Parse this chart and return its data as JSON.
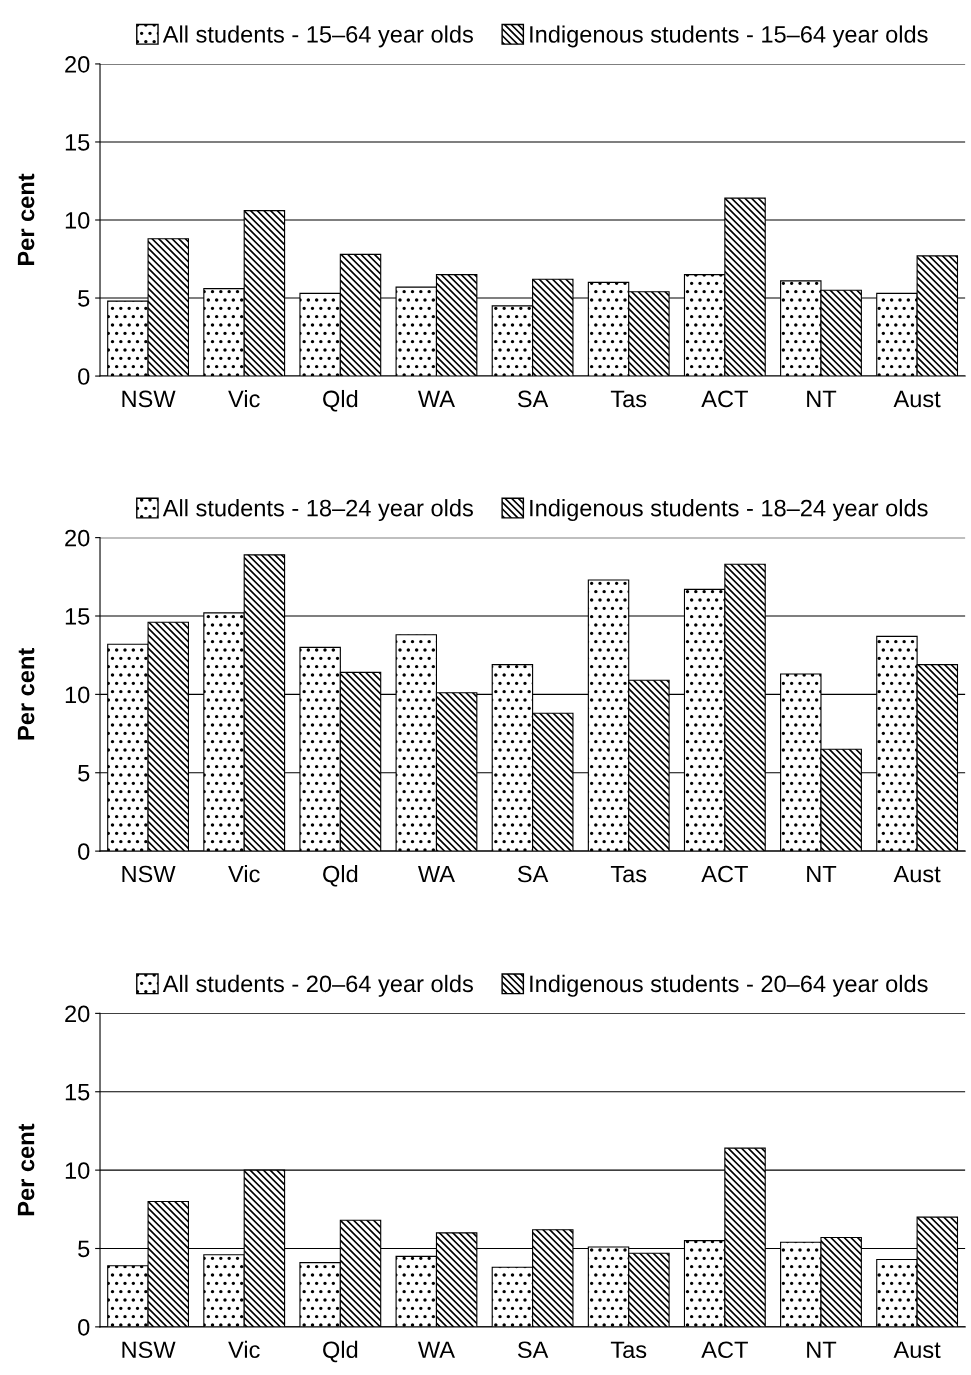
{
  "chart_data": [
    {
      "type": "bar",
      "ylabel": "Per cent",
      "categories": [
        "NSW",
        "Vic",
        "Qld",
        "WA",
        "SA",
        "Tas",
        "ACT",
        "NT",
        "Aust"
      ],
      "ylim": [
        0,
        20
      ],
      "yticks": [
        0,
        5,
        10,
        15,
        20
      ],
      "grid": "y",
      "legend": "top",
      "series": [
        {
          "name": "All students - 15–64 year olds",
          "color": "#000000",
          "values": [
            4.8,
            5.6,
            5.3,
            5.7,
            4.5,
            6.0,
            6.5,
            6.1,
            5.3
          ]
        },
        {
          "name": "Indigenous students - 15–64 year olds",
          "color": "#000000",
          "values": [
            8.8,
            10.6,
            7.8,
            6.5,
            6.2,
            5.4,
            11.4,
            5.5,
            7.7
          ]
        }
      ]
    },
    {
      "type": "bar",
      "ylabel": "Per cent",
      "categories": [
        "NSW",
        "Vic",
        "Qld",
        "WA",
        "SA",
        "Tas",
        "ACT",
        "NT",
        "Aust"
      ],
      "ylim": [
        0,
        20
      ],
      "yticks": [
        0,
        5,
        10,
        15,
        20
      ],
      "grid": "y",
      "legend": "top",
      "series": [
        {
          "name": "All students - 18–24 year olds",
          "color": "#000000",
          "values": [
            13.2,
            15.2,
            13.0,
            13.8,
            11.9,
            17.3,
            16.7,
            11.3,
            13.7
          ]
        },
        {
          "name": "Indigenous students - 18–24 year olds",
          "color": "#000000",
          "values": [
            14.6,
            18.9,
            11.4,
            10.1,
            8.8,
            10.9,
            18.3,
            6.5,
            11.9
          ]
        }
      ]
    },
    {
      "type": "bar",
      "ylabel": "Per cent",
      "categories": [
        "NSW",
        "Vic",
        "Qld",
        "WA",
        "SA",
        "Tas",
        "ACT",
        "NT",
        "Aust"
      ],
      "ylim": [
        0,
        20
      ],
      "yticks": [
        0,
        5,
        10,
        15,
        20
      ],
      "grid": "y",
      "legend": "top",
      "series": [
        {
          "name": "All students - 20–64 year olds",
          "color": "#000000",
          "values": [
            3.9,
            4.6,
            4.1,
            4.5,
            3.8,
            5.1,
            5.5,
            5.4,
            4.3
          ]
        },
        {
          "name": "Indigenous students - 20–64 year olds",
          "color": "#000000",
          "values": [
            8.0,
            10.0,
            6.8,
            6.0,
            6.2,
            4.7,
            11.4,
            5.7,
            7.0
          ]
        }
      ]
    }
  ]
}
